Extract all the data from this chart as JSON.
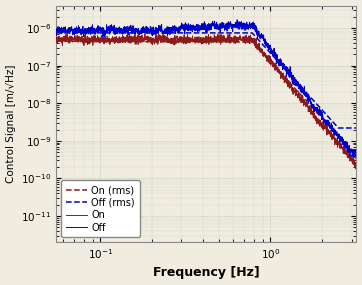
{
  "title": "",
  "xlabel": "Frequency [Hz]",
  "ylabel": "Control Signal [m/√Hz]",
  "xlim": [
    0.055,
    3.2
  ],
  "ylim": [
    2e-12,
    4e-06
  ],
  "freq_min": 0.055,
  "freq_max": 3.2,
  "n_points": 2000,
  "color_on": "#8B1A1A",
  "color_off": "#0000CC",
  "legend_labels": [
    "On",
    "On (rms)",
    "Off",
    "Off (rms)"
  ],
  "background_color": "#f0ede0",
  "grid_color": "#b0b0b0",
  "rolloff_freq": 0.78,
  "on_base": 5e-07,
  "off_base": 8.5e-07,
  "on_rms_flat": 4.5e-07,
  "off_rms_flat": 7.5e-07,
  "off_rms_floor": 2.2e-09,
  "slope": 5.5
}
